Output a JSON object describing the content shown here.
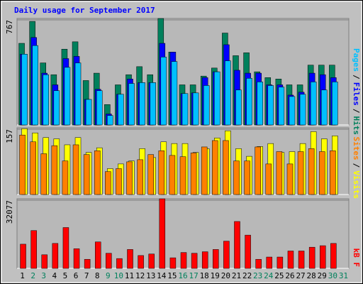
{
  "title": "Daily usage for September 2017",
  "legend_separator": "/",
  "chart_data": [
    {
      "type": "bar",
      "ylim": [
        0,
        767
      ],
      "yticks": [
        767
      ],
      "series": [
        {
          "name": "Hits",
          "color": "#00805c",
          "values": [
            588,
            746,
            447,
            362,
            546,
            599,
            320,
            373,
            147,
            289,
            362,
            420,
            362,
            767,
            525,
            289,
            289,
            352,
            410,
            662,
            499,
            520,
            383,
            341,
            331,
            289,
            289,
            431,
            431,
            431,
            null
          ]
        },
        {
          "name": "Files",
          "color": "#0000ff",
          "values": [
            510,
            630,
            373,
            289,
            478,
            494,
            184,
            257,
            79,
            221,
            331,
            305,
            305,
            588,
            525,
            226,
            231,
            341,
            383,
            578,
            394,
            373,
            373,
            289,
            289,
            215,
            236,
            373,
            362,
            341,
            null
          ]
        },
        {
          "name": "Pages",
          "color": "#00c0ff",
          "values": [
            510,
            572,
            362,
            247,
            415,
            447,
            184,
            247,
            68,
            221,
            299,
            305,
            305,
            489,
            457,
            226,
            231,
            284,
            383,
            462,
            252,
            336,
            310,
            284,
            273,
            205,
            221,
            310,
            252,
            310,
            null
          ]
        }
      ]
    },
    {
      "type": "bar",
      "ylim": [
        0,
        157
      ],
      "yticks": [
        157
      ],
      "series": [
        {
          "name": "Visits",
          "color": "#ffff00",
          "values": [
            155,
            145,
            134,
            131,
            117,
            134,
            99,
            110,
            61,
            72,
            79,
            108,
            87,
            124,
            120,
            120,
            99,
            108,
            133,
            150,
            108,
            90,
            113,
            120,
            99,
            101,
            120,
            148,
            131,
            138,
            null
          ]
        },
        {
          "name": "Sites",
          "color": "#ff8000",
          "values": [
            140,
            124,
            96,
            115,
            79,
            117,
            94,
            103,
            54,
            61,
            77,
            82,
            94,
            103,
            92,
            89,
            98,
            112,
            127,
            127,
            79,
            79,
            112,
            72,
            101,
            72,
            101,
            108,
            101,
            103,
            null
          ]
        }
      ]
    },
    {
      "type": "bar",
      "ylim": [
        0,
        32077
      ],
      "yticks": [
        32077
      ],
      "categories": [
        "1",
        "2",
        "3",
        "4",
        "5",
        "6",
        "7",
        "8",
        "9",
        "10",
        "11",
        "12",
        "13",
        "14",
        "15",
        "16",
        "17",
        "18",
        "19",
        "20",
        "21",
        "22",
        "23",
        "24",
        "25",
        "26",
        "27",
        "28",
        "29",
        "30",
        "31"
      ],
      "category_colors": [
        "#000000",
        "#00805c",
        "#00805c",
        "#000000",
        "#000000",
        "#000000",
        "#000000",
        "#000000",
        "#00805c",
        "#00805c",
        "#000000",
        "#000000",
        "#000000",
        "#000000",
        "#000000",
        "#00805c",
        "#00805c",
        "#000000",
        "#000000",
        "#000000",
        "#000000",
        "#000000",
        "#00805c",
        "#00805c",
        "#000000",
        "#000000",
        "#000000",
        "#000000",
        "#000000",
        "#00805c",
        "#00805c"
      ],
      "series": [
        {
          "name": "kB F",
          "color": "#ff0000",
          "values": [
            11157,
            17433,
            6276,
            11506,
            18827,
            9065,
            4184,
            12203,
            6973,
            4533,
            8716,
            5927,
            6625,
            32077,
            4881,
            7322,
            6973,
            7671,
            8716,
            12552,
            21617,
            15341,
            4184,
            5230,
            5230,
            8019,
            8019,
            9763,
            10460,
            11506,
            null
          ]
        }
      ]
    }
  ]
}
